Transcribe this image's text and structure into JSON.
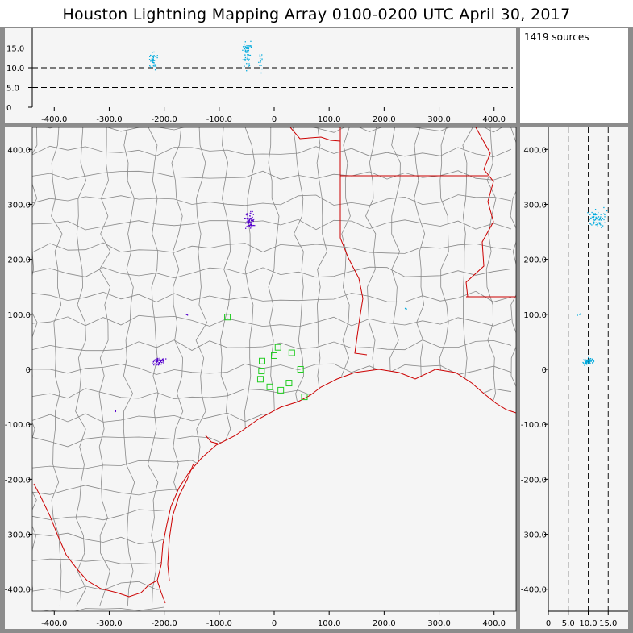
{
  "title": "Houston Lightning Mapping Array   0100-0200 UTC  April 30, 2017",
  "source_count_label": "1419 sources",
  "colors": {
    "background": "#f5f5f5",
    "frame": "#8c8c8c",
    "county_lines": "#888888",
    "coastline_state": "#cc0000",
    "station_marker": "#22cc22",
    "early_sources": "#5500cc",
    "late_sources": "#00aadd"
  },
  "chart_data": [
    {
      "panel": "altitude-vs-east-west",
      "type": "scatter",
      "xlim": [
        -440,
        440
      ],
      "ylim": [
        0,
        20
      ],
      "xticks": [
        "-400.0",
        "-300.0",
        "-200.0",
        "-100.0",
        "0",
        "100.0",
        "200.0",
        "300.0",
        "400.0"
      ],
      "yticks": [
        "0",
        "5.0",
        "10.0",
        "15.0"
      ],
      "reference_altitudes_km": [
        5,
        10,
        15
      ],
      "clusters": [
        {
          "x": -220,
          "y": 12,
          "spread_x": 12,
          "spread_y": 4,
          "n": 40
        },
        {
          "x": -50,
          "y": 14,
          "spread_x": 12,
          "spread_y": 5,
          "n": 60
        },
        {
          "x": -25,
          "y": 12,
          "spread_x": 8,
          "spread_y": 4,
          "n": 15
        }
      ]
    },
    {
      "panel": "plan-view",
      "type": "scatter",
      "xlim": [
        -440,
        440
      ],
      "ylim": [
        -440,
        440
      ],
      "xticks": [
        "-400.0",
        "-300.0",
        "-200.0",
        "-100.0",
        "0",
        "100.0",
        "200.0",
        "300.0",
        "400.0"
      ],
      "yticks": [
        "400.0",
        "300.0",
        "200.0",
        "100.0",
        "0",
        "-100.0",
        "-200.0",
        "-300.0",
        "-400.0"
      ],
      "clusters": [
        {
          "x": -210,
          "y": 15,
          "spread_x": 15,
          "spread_y": 10,
          "n": 60
        },
        {
          "x": -45,
          "y": 270,
          "spread_x": 12,
          "spread_y": 20,
          "n": 70
        },
        {
          "x": -290,
          "y": -75,
          "spread_x": 3,
          "spread_y": 4,
          "n": 5
        },
        {
          "x": -160,
          "y": 100,
          "spread_x": 4,
          "spread_y": 3,
          "n": 3
        },
        {
          "x": 240,
          "y": 110,
          "spread_x": 5,
          "spread_y": 3,
          "n": 3
        }
      ],
      "stations": [
        {
          "x": -85,
          "y": 95
        },
        {
          "x": -22,
          "y": 15
        },
        {
          "x": 0,
          "y": 25
        },
        {
          "x": 7,
          "y": 40
        },
        {
          "x": 32,
          "y": 30
        },
        {
          "x": -23,
          "y": -3
        },
        {
          "x": -25,
          "y": -18
        },
        {
          "x": -8,
          "y": -32
        },
        {
          "x": 12,
          "y": -38
        },
        {
          "x": 27,
          "y": -25
        },
        {
          "x": 48,
          "y": 0
        },
        {
          "x": 55,
          "y": -50
        }
      ]
    },
    {
      "panel": "north-south-vs-altitude",
      "type": "scatter",
      "xlim": [
        0,
        20
      ],
      "ylim": [
        -440,
        440
      ],
      "xticks": [
        "0",
        "5.0",
        "10.0",
        "15.0"
      ],
      "yticks": [
        "400.0",
        "300.0",
        "200.0",
        "100.0",
        "0",
        "-100.0",
        "-200.0",
        "-300.0",
        "-400.0"
      ],
      "reference_altitudes_km": [
        5,
        10,
        15
      ],
      "clusters": [
        {
          "x": 12,
          "y": 275,
          "spread_x": 3,
          "spread_y": 25,
          "n": 70
        },
        {
          "x": 10,
          "y": 15,
          "spread_x": 2,
          "spread_y": 8,
          "n": 60
        },
        {
          "x": 8,
          "y": 100,
          "spread_x": 2,
          "spread_y": 3,
          "n": 3
        }
      ]
    }
  ]
}
